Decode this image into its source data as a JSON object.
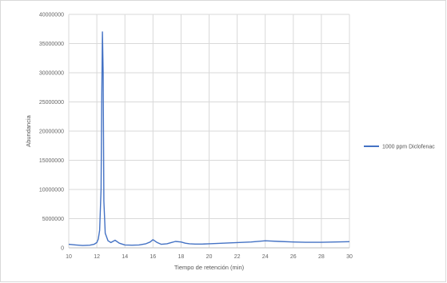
{
  "chart_data": {
    "type": "line",
    "title": "",
    "xlabel": "Tiempo de retención (min)",
    "ylabel": "Abundancia",
    "xlim": [
      10,
      30
    ],
    "ylim": [
      0,
      40000000
    ],
    "x_ticks": [
      "10",
      "12",
      "14",
      "16",
      "18",
      "20",
      "22",
      "24",
      "26",
      "28",
      "30"
    ],
    "y_ticks": [
      "0",
      "5000000",
      "10000000",
      "15000000",
      "20000000",
      "25000000",
      "30000000",
      "35000000",
      "40000000"
    ],
    "grid": true,
    "legend_position": "right",
    "series": [
      {
        "name": "1000 ppm Diclofenac",
        "color": "#4472c4",
        "x": [
          10.0,
          10.5,
          11.0,
          11.5,
          11.8,
          12.0,
          12.1,
          12.2,
          12.3,
          12.35,
          12.4,
          12.45,
          12.5,
          12.6,
          12.8,
          13.0,
          13.3,
          13.6,
          14.0,
          14.5,
          15.0,
          15.5,
          15.8,
          16.0,
          16.3,
          16.6,
          17.0,
          17.3,
          17.6,
          18.0,
          18.3,
          18.6,
          19.0,
          19.5,
          20.0,
          21.0,
          22.0,
          23.0,
          24.0,
          25.0,
          26.0,
          27.0,
          28.0,
          29.0,
          30.0
        ],
        "values": [
          600000,
          500000,
          400000,
          450000,
          600000,
          900000,
          1500000,
          3000000,
          10000000,
          25000000,
          37000000,
          30000000,
          8000000,
          2500000,
          1200000,
          900000,
          1300000,
          800000,
          500000,
          450000,
          500000,
          700000,
          1000000,
          1400000,
          900000,
          600000,
          700000,
          900000,
          1100000,
          1000000,
          800000,
          700000,
          650000,
          650000,
          700000,
          800000,
          900000,
          1000000,
          1200000,
          1100000,
          1000000,
          950000,
          950000,
          1000000,
          1050000
        ]
      }
    ]
  }
}
